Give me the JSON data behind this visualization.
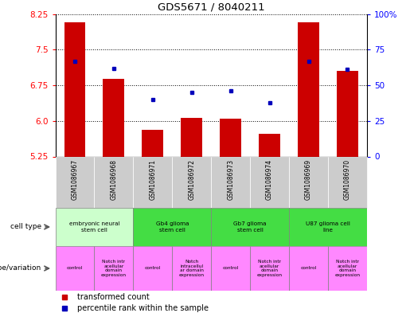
{
  "title": "GDS5671 / 8040211",
  "samples": [
    "GSM1086967",
    "GSM1086968",
    "GSM1086971",
    "GSM1086972",
    "GSM1086973",
    "GSM1086974",
    "GSM1086969",
    "GSM1086970"
  ],
  "bar_values": [
    8.08,
    6.88,
    5.82,
    6.07,
    6.05,
    5.72,
    8.08,
    7.05
  ],
  "bar_base": 5.25,
  "dot_percentiles": [
    67,
    62,
    40,
    45,
    46,
    38,
    67,
    61
  ],
  "ylim": [
    5.25,
    8.25
  ],
  "y2lim": [
    0,
    100
  ],
  "yticks": [
    5.25,
    6.0,
    6.75,
    7.5,
    8.25
  ],
  "y2ticks": [
    0,
    25,
    50,
    75,
    100
  ],
  "bar_color": "#cc0000",
  "dot_color": "#0000bb",
  "cell_types": [
    {
      "label": "embryonic neural\nstem cell",
      "start": 0,
      "end": 2,
      "color": "#ccffcc"
    },
    {
      "label": "Gb4 glioma\nstem cell",
      "start": 2,
      "end": 4,
      "color": "#44dd44"
    },
    {
      "label": "Gb7 glioma\nstem cell",
      "start": 4,
      "end": 6,
      "color": "#44dd44"
    },
    {
      "label": "U87 glioma cell\nline",
      "start": 6,
      "end": 8,
      "color": "#44dd44"
    }
  ],
  "genotypes": [
    {
      "label": "control",
      "start": 0,
      "end": 1
    },
    {
      "label": "Notch intr\nacellular\ndomain\nexpression",
      "start": 1,
      "end": 2
    },
    {
      "label": "control",
      "start": 2,
      "end": 3
    },
    {
      "label": "Notch\nintracellul\nar domain\nexpression",
      "start": 3,
      "end": 4
    },
    {
      "label": "control",
      "start": 4,
      "end": 5
    },
    {
      "label": "Notch intr\nacellular\ndomain\nexpression",
      "start": 5,
      "end": 6
    },
    {
      "label": "control",
      "start": 6,
      "end": 7
    },
    {
      "label": "Notch intr\nacellular\ndomain\nexpression",
      "start": 7,
      "end": 8
    }
  ],
  "geno_color": "#ff88ff",
  "tick_label_bg": "#cccccc",
  "fig_width": 5.15,
  "fig_height": 3.93,
  "dpi": 100
}
